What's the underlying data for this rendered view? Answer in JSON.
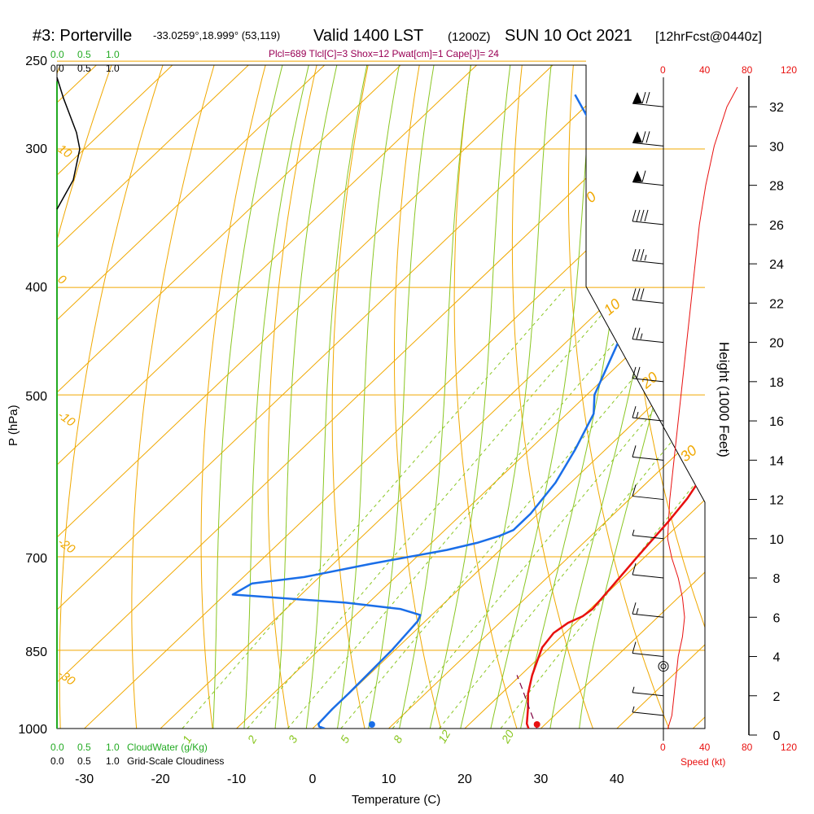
{
  "header": {
    "station": "#3: Porterville",
    "coords": "-33.0259°,18.999° (53,119)",
    "valid": "Valid 1400 LST",
    "utc": "(1200Z)",
    "date": "SUN 10 Oct 2021",
    "forecast": "[12hrFcst@0440z]",
    "indices": "Plcl=689 Tlcl[C]=3 Shox=12 Pwat[cm]=1 Cape[J]= 24"
  },
  "labels": {
    "cloudwater_ticks": [
      "0.0",
      "0.5",
      "1.0"
    ],
    "cloudiness_ticks": [
      "0.0",
      "0.5",
      "1.0"
    ],
    "cloudwater_label": "CloudWater (g/Kg)",
    "cloudiness_label": "Grid-Scale Cloudiness",
    "speed_ticks": [
      "0",
      "40",
      "80",
      "120"
    ],
    "speed_label": "Speed (kt)"
  },
  "colors": {
    "temperature": "#e8100f",
    "dewpoint": "#1a6ee8",
    "isotherm": "#f0a800",
    "dry_adiabat": "#f0a800",
    "moist_adiabat": "#8ac622",
    "mixing_ratio": "#8ac622",
    "cloudwater": "#22aa22",
    "speed": "#e8100f",
    "header_indices": "#990055"
  },
  "chart_data": {
    "type": "line",
    "subtype": "skew-T log-P sounding",
    "xlabel": "Temperature (C)",
    "ylabel": "P (hPa)",
    "y2label": "Height (1000 Feet)",
    "x_ticks": [
      -30,
      -20,
      -10,
      0,
      10,
      20,
      30,
      40
    ],
    "pressure_ticks": [
      1000,
      850,
      700,
      500,
      400,
      300,
      250
    ],
    "height_ticks_kft": [
      0,
      2,
      4,
      6,
      8,
      10,
      12,
      14,
      16,
      18,
      20,
      22,
      24,
      26,
      28,
      30,
      32
    ],
    "dry_adiabat_labels": [
      "-20",
      "-10",
      "0",
      "10",
      "20",
      "30"
    ],
    "moist_adiabat_labels": [
      "0",
      "10",
      "20",
      "30"
    ],
    "mixing_ratio_labels": [
      "1",
      "2",
      "3",
      "5",
      "8",
      "12",
      "20"
    ],
    "series": [
      {
        "key": "temperature",
        "points": [
          [
            28.4,
            1000
          ],
          [
            27.5,
            990
          ],
          [
            25.6,
            960
          ],
          [
            23.5,
            930
          ],
          [
            21.5,
            895
          ],
          [
            20.0,
            865
          ],
          [
            19.0,
            845
          ],
          [
            18.5,
            820
          ],
          [
            19.0,
            803
          ],
          [
            20.0,
            792
          ],
          [
            20.3,
            780
          ],
          [
            20.0,
            760
          ],
          [
            19.5,
            730
          ],
          [
            19.0,
            700
          ],
          [
            18.2,
            650
          ],
          [
            17.5,
            620
          ],
          [
            16.7,
            600
          ],
          [
            15.9,
            580
          ],
          [
            14.0,
            540
          ],
          [
            12.0,
            500
          ],
          [
            10.0,
            470
          ],
          [
            8.0,
            450
          ],
          [
            4.0,
            420
          ],
          [
            0.0,
            400
          ],
          [
            -5.0,
            370
          ],
          [
            -10.5,
            340
          ],
          [
            -16.0,
            310
          ],
          [
            -21.0,
            290
          ],
          [
            -26.0,
            268
          ]
        ]
      },
      {
        "key": "dewpoint",
        "points": [
          [
            1.6,
            1000
          ],
          [
            0.6,
            996
          ],
          [
            0.1,
            990
          ],
          [
            -0.1,
            960
          ],
          [
            -0.1,
            930
          ],
          [
            -0.4,
            850
          ],
          [
            -1.0,
            800
          ],
          [
            -1.5,
            790
          ],
          [
            -5.0,
            780
          ],
          [
            -13.0,
            770
          ],
          [
            -29.0,
            757
          ],
          [
            -28.0,
            740
          ],
          [
            -22.0,
            730
          ],
          [
            -15.0,
            710
          ],
          [
            -7.0,
            690
          ],
          [
            -4.0,
            680
          ],
          [
            -2.0,
            670
          ],
          [
            -1.0,
            662
          ],
          [
            -1.0,
            640
          ],
          [
            -2.0,
            600
          ],
          [
            -4.0,
            560
          ],
          [
            -6.5,
            520
          ],
          [
            -9.0,
            500
          ],
          [
            -13.0,
            450
          ],
          [
            -16.0,
            420
          ],
          [
            -19.0,
            400
          ],
          [
            -24.0,
            370
          ],
          [
            -29.0,
            350
          ],
          [
            -34.0,
            330
          ],
          [
            -39.0,
            310
          ],
          [
            -45.0,
            290
          ],
          [
            -53.0,
            268
          ]
        ]
      },
      {
        "key": "parcel",
        "points": [
          [
            29.5,
            1000
          ],
          [
            25.8,
            960
          ],
          [
            22.0,
            920
          ],
          [
            19.5,
            895
          ]
        ]
      }
    ],
    "surface_markers": {
      "temperature_c": 29.5,
      "dewpoint_c": 7.8,
      "pressure_hpa": 1000
    },
    "wind_speed_kt": [
      [
        4,
        0.3
      ],
      [
        8,
        1
      ],
      [
        10,
        2
      ],
      [
        12,
        3
      ],
      [
        14,
        4
      ],
      [
        18,
        5
      ],
      [
        20,
        6
      ],
      [
        18,
        7
      ],
      [
        14,
        8
      ],
      [
        8,
        9
      ],
      [
        4,
        10
      ],
      [
        6,
        12
      ],
      [
        10,
        14
      ],
      [
        14,
        16
      ],
      [
        18,
        18
      ],
      [
        22,
        20
      ],
      [
        26,
        22
      ],
      [
        30,
        24
      ],
      [
        34,
        26
      ],
      [
        40,
        28
      ],
      [
        48,
        30
      ],
      [
        60,
        32
      ],
      [
        70,
        33
      ]
    ],
    "wind_barbs_kt": [
      {
        "height_kft": 32,
        "speed_kt": 70
      },
      {
        "height_kft": 30,
        "speed_kt": 70
      },
      {
        "height_kft": 28,
        "speed_kt": 60
      },
      {
        "height_kft": 26,
        "speed_kt": 40
      },
      {
        "height_kft": 24,
        "speed_kt": 35
      },
      {
        "height_kft": 22,
        "speed_kt": 30
      },
      {
        "height_kft": 20,
        "speed_kt": 25
      },
      {
        "height_kft": 18,
        "speed_kt": 20
      },
      {
        "height_kft": 16,
        "speed_kt": 15
      },
      {
        "height_kft": 14,
        "speed_kt": 10
      },
      {
        "height_kft": 12,
        "speed_kt": 10
      },
      {
        "height_kft": 10,
        "speed_kt": 5
      },
      {
        "height_kft": 8,
        "speed_kt": 10
      },
      {
        "height_kft": 6,
        "speed_kt": 15
      },
      {
        "height_kft": 4,
        "speed_kt": 10
      },
      {
        "height_kft": 2,
        "speed_kt": 5
      },
      {
        "height_kft": 1,
        "speed_kt": 5
      }
    ],
    "calm_marker_kft": 3.5,
    "cloud_profile": [
      [
        0,
        250
      ],
      [
        0.1,
        270
      ],
      [
        0.3,
        290
      ],
      [
        0.35,
        300
      ],
      [
        0.25,
        320
      ],
      [
        0,
        340
      ]
    ]
  }
}
